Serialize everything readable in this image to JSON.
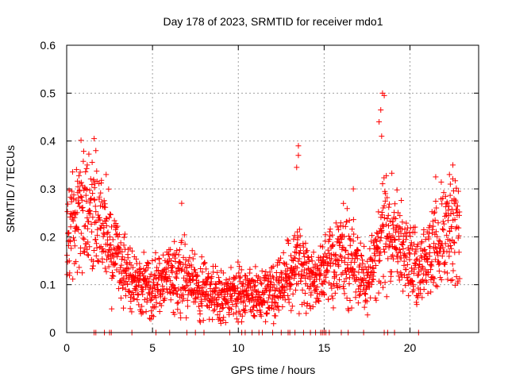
{
  "chart_data": {
    "type": "scatter",
    "title": "Day 178 of 2023, SRMTID for receiver mdo1",
    "xlabel": "GPS time / hours",
    "ylabel": "SRMTID / TECUs",
    "xlim": [
      0,
      24
    ],
    "ylim": [
      0,
      0.6
    ],
    "grid": true,
    "marker": "+",
    "color": "#ff0000",
    "x_ticks": [
      0,
      5,
      10,
      15,
      20
    ],
    "x_tick_labels": [
      "0",
      "5",
      "10",
      "15",
      "20"
    ],
    "y_ticks": [
      0,
      0.1,
      0.2,
      0.3,
      0.4,
      0.5,
      0.6
    ],
    "y_tick_labels": [
      "0",
      "0.1",
      "0.2",
      "0.3",
      "0.4",
      "0.5",
      "0.6"
    ],
    "trend": {
      "x": [
        0.0,
        0.5,
        1.0,
        1.5,
        2.0,
        2.5,
        3.0,
        3.5,
        4.0,
        4.5,
        5.0,
        5.5,
        6.0,
        6.5,
        7.0,
        7.5,
        8.0,
        8.5,
        9.0,
        9.5,
        10.0,
        10.5,
        11.0,
        11.5,
        12.0,
        12.5,
        13.0,
        13.5,
        14.0,
        14.5,
        15.0,
        15.5,
        16.0,
        16.5,
        17.0,
        17.5,
        18.0,
        18.5,
        19.0,
        19.5,
        20.0,
        20.5,
        21.0,
        21.5,
        22.0,
        22.5,
        23.0
      ],
      "y": [
        0.22,
        0.22,
        0.25,
        0.26,
        0.22,
        0.18,
        0.15,
        0.13,
        0.11,
        0.1,
        0.1,
        0.1,
        0.12,
        0.13,
        0.11,
        0.1,
        0.09,
        0.085,
        0.08,
        0.08,
        0.08,
        0.08,
        0.08,
        0.085,
        0.09,
        0.1,
        0.12,
        0.14,
        0.12,
        0.1,
        0.13,
        0.14,
        0.15,
        0.16,
        0.13,
        0.1,
        0.15,
        0.22,
        0.2,
        0.18,
        0.15,
        0.13,
        0.15,
        0.18,
        0.2,
        0.22,
        0.2
      ]
    },
    "spikes": [
      {
        "x": 1.6,
        "y": 0.405
      },
      {
        "x": 1.7,
        "y": 0.38
      },
      {
        "x": 1.2,
        "y": 0.35
      },
      {
        "x": 2.3,
        "y": 0.33
      },
      {
        "x": 6.7,
        "y": 0.27
      },
      {
        "x": 13.5,
        "y": 0.39
      },
      {
        "x": 13.5,
        "y": 0.37
      },
      {
        "x": 13.4,
        "y": 0.345
      },
      {
        "x": 16.7,
        "y": 0.3
      },
      {
        "x": 18.2,
        "y": 0.44
      },
      {
        "x": 18.3,
        "y": 0.465
      },
      {
        "x": 18.4,
        "y": 0.5
      },
      {
        "x": 18.5,
        "y": 0.495
      },
      {
        "x": 18.35,
        "y": 0.41
      },
      {
        "x": 21.5,
        "y": 0.325
      },
      {
        "x": 22.5,
        "y": 0.35
      },
      {
        "x": 22.3,
        "y": 0.33
      }
    ],
    "zeros_x": [
      1.6,
      1.7,
      2.2,
      2.5,
      2.6,
      3.8,
      5.2,
      6.0,
      7.0,
      7.5,
      8.0,
      9.5,
      10.2,
      10.4,
      10.8,
      11.2,
      11.4,
      12.0,
      12.5,
      12.9,
      13.0,
      13.3,
      13.8,
      14.2,
      14.5,
      14.8,
      14.9,
      15.0,
      15.1,
      15.3,
      16.0,
      16.4,
      17.3,
      18.5,
      18.7,
      19.1,
      20.5
    ]
  }
}
